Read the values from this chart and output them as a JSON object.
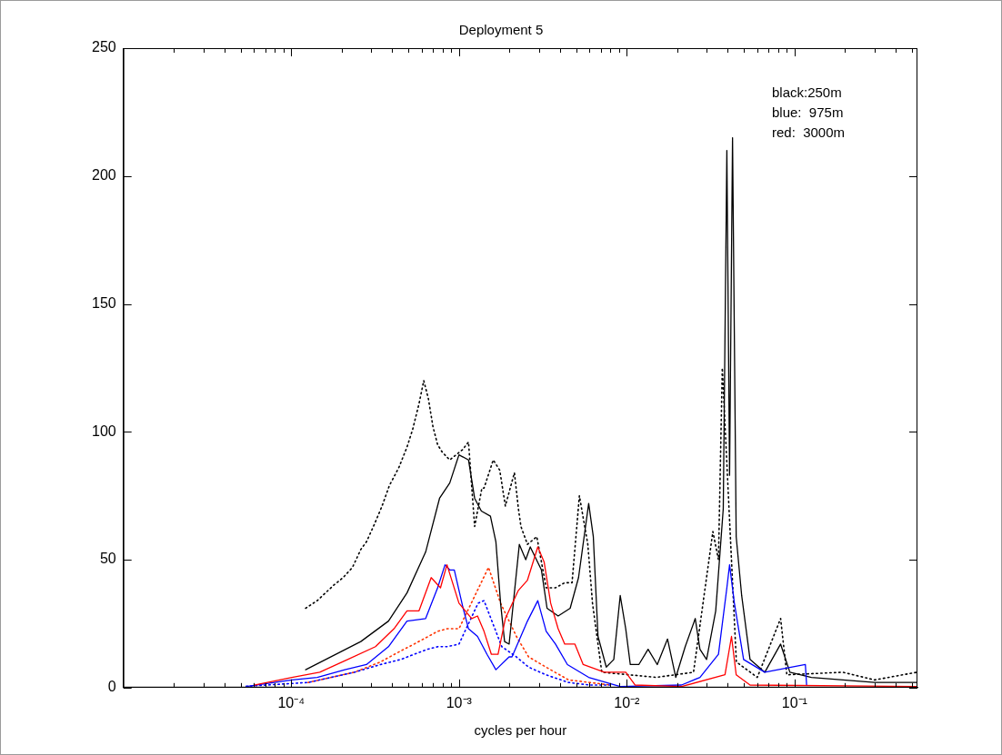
{
  "chart_data": {
    "type": "line",
    "title": "Deployment 5",
    "xlabel": "cycles per hour",
    "log": "x",
    "legend": false,
    "marker": "none",
    "xlim": [
      1e-05,
      0.54
    ],
    "ylim": [
      0,
      250
    ],
    "xticks": [
      {
        "value": 2e-05,
        "label": null
      },
      {
        "value": 3e-05,
        "label": null
      },
      {
        "value": 4e-05,
        "label": null
      },
      {
        "value": 5e-05,
        "label": null
      },
      {
        "value": 6e-05,
        "label": null
      },
      {
        "value": 7e-05,
        "label": null
      },
      {
        "value": 8e-05,
        "label": null
      },
      {
        "value": 9e-05,
        "label": null
      },
      {
        "value": 0.0001,
        "label": "10⁻⁴"
      },
      {
        "value": 0.0002,
        "label": null
      },
      {
        "value": 0.0003,
        "label": null
      },
      {
        "value": 0.0004,
        "label": null
      },
      {
        "value": 0.0005,
        "label": null
      },
      {
        "value": 0.0006,
        "label": null
      },
      {
        "value": 0.0007,
        "label": null
      },
      {
        "value": 0.0008,
        "label": null
      },
      {
        "value": 0.0009,
        "label": null
      },
      {
        "value": 0.001,
        "label": "10⁻³"
      },
      {
        "value": 0.002,
        "label": null
      },
      {
        "value": 0.003,
        "label": null
      },
      {
        "value": 0.004,
        "label": null
      },
      {
        "value": 0.005,
        "label": null
      },
      {
        "value": 0.006,
        "label": null
      },
      {
        "value": 0.007,
        "label": null
      },
      {
        "value": 0.008,
        "label": null
      },
      {
        "value": 0.009,
        "label": null
      },
      {
        "value": 0.01,
        "label": "10⁻²"
      },
      {
        "value": 0.02,
        "label": null
      },
      {
        "value": 0.03,
        "label": null
      },
      {
        "value": 0.04,
        "label": null
      },
      {
        "value": 0.05,
        "label": null
      },
      {
        "value": 0.06,
        "label": null
      },
      {
        "value": 0.07,
        "label": null
      },
      {
        "value": 0.08,
        "label": null
      },
      {
        "value": 0.09,
        "label": null
      },
      {
        "value": 0.1,
        "label": "10⁻¹"
      },
      {
        "value": 0.2,
        "label": null
      },
      {
        "value": 0.3,
        "label": null
      },
      {
        "value": 0.4,
        "label": null
      },
      {
        "value": 0.5,
        "label": null
      }
    ],
    "yticks": [
      0,
      50,
      100,
      150,
      200,
      250
    ],
    "annotations": [
      "black:250m",
      "blue:  975m",
      "red:  3000m"
    ],
    "series": [
      {
        "color": "#000000",
        "line_style": "dotted",
        "x": [
          0.000122,
          0.000143,
          0.000179,
          0.000204,
          0.000232,
          0.00026,
          0.000281,
          0.000314,
          0.000348,
          0.000385,
          0.000438,
          0.00049,
          0.00053,
          0.000578,
          0.000617,
          0.000657,
          0.0007,
          0.000746,
          0.000796,
          0.000881,
          0.00105,
          0.00114,
          0.00119,
          0.00124,
          0.00137,
          0.00141,
          0.0016,
          0.00175,
          0.00189,
          0.00214,
          0.00226,
          0.00234,
          0.00256,
          0.00291,
          0.00331,
          0.00376,
          0.00427,
          0.00472,
          0.00522,
          0.00586,
          0.00625,
          0.0071,
          0.015,
          0.025,
          0.0326,
          0.0352,
          0.0371,
          0.045,
          0.06,
          0.0826,
          0.09,
          0.194,
          0.3,
          0.536
        ],
        "values": [
          31,
          34,
          40,
          43,
          47,
          54,
          57,
          64,
          71,
          79,
          86,
          94,
          101,
          111,
          120,
          113,
          102,
          95,
          92,
          89,
          93,
          96,
          79,
          63,
          78,
          78,
          89,
          85,
          71,
          84,
          70,
          63,
          56,
          59,
          39,
          39,
          41,
          41,
          75,
          56,
          33,
          6,
          4,
          6,
          61,
          50,
          125,
          10,
          4,
          27,
          5,
          6,
          3,
          6
        ]
      },
      {
        "color": "#ff3300",
        "line_style": "dotted",
        "x": [
          0.000126,
          0.000238,
          0.00034,
          0.00044,
          0.00054,
          0.000657,
          0.000746,
          0.00085,
          0.001,
          0.0015,
          0.00177,
          0.0022,
          0.0026,
          0.0033,
          0.0045,
          0.006,
          0.008
        ],
        "values": [
          2,
          6,
          10,
          14,
          17,
          20,
          22,
          23,
          23,
          47,
          33,
          20,
          12,
          8,
          3,
          2,
          1
        ]
      },
      {
        "color": "#0000ff",
        "line_style": "dotted",
        "x": [
          5.4e-05,
          0.000126,
          0.000238,
          0.00034,
          0.00045,
          0.00054,
          0.00065,
          0.00075,
          0.00085,
          0.001,
          0.0013,
          0.00141,
          0.0018,
          0.0022,
          0.0026,
          0.0033,
          0.0045,
          0.006,
          0.008
        ],
        "values": [
          0.5,
          2,
          6,
          9,
          11,
          13,
          15,
          16,
          16,
          17,
          33,
          34,
          16,
          12,
          8,
          5,
          2,
          1,
          1
        ]
      },
      {
        "color": "#000000",
        "line_style": "solid",
        "x": [
          0.000122,
          0.00026,
          0.00038,
          0.00049,
          0.000633,
          0.000766,
          0.000881,
          0.001,
          0.00114,
          0.00124,
          0.00136,
          0.00154,
          0.00166,
          0.00177,
          0.00187,
          0.00199,
          0.00229,
          0.0025,
          0.00266,
          0.0031,
          0.00335,
          0.0039,
          0.0046,
          0.00516,
          0.00593,
          0.00632,
          0.00674,
          0.00755,
          0.00837,
          0.00914,
          0.00986,
          0.0105,
          0.0118,
          0.0134,
          0.0152,
          0.0175,
          0.0196,
          0.0223,
          0.0256,
          0.0273,
          0.0299,
          0.0339,
          0.0376,
          0.0395,
          0.041,
          0.0427,
          0.0449,
          0.0484,
          0.0543,
          0.0665,
          0.0826,
          0.0938,
          0.126,
          0.3,
          0.536
        ],
        "values": [
          7,
          18,
          26,
          37,
          53,
          74,
          80,
          91,
          89,
          74,
          69,
          67,
          57,
          33,
          18,
          17,
          56,
          50,
          55,
          46,
          31,
          28,
          31,
          43,
          72,
          59,
          20,
          8,
          11,
          36,
          23,
          9,
          9,
          15,
          9,
          19,
          4,
          16,
          27,
          15,
          11,
          30,
          70,
          210,
          83,
          215,
          59,
          36,
          11,
          6,
          17,
          6,
          4,
          2,
          2
        ]
      },
      {
        "color": "#0000ff",
        "line_style": "solid",
        "x": [
          5.4e-05,
          0.000101,
          0.000143,
          0.000209,
          0.000281,
          0.00038,
          0.00049,
          0.000633,
          0.000746,
          0.000826,
          0.000881,
          0.000938,
          0.00105,
          0.00114,
          0.00129,
          0.00147,
          0.00166,
          0.00199,
          0.00207,
          0.00256,
          0.00295,
          0.00331,
          0.00376,
          0.00443,
          0.00593,
          0.00914,
          0.0212,
          0.0273,
          0.0352,
          0.0395,
          0.041,
          0.0438,
          0.0497,
          0.0665,
          0.116,
          0.118
        ],
        "values": [
          0.4,
          3,
          4,
          7,
          9,
          16,
          26,
          27,
          39,
          48,
          46,
          46,
          32,
          23,
          20,
          13,
          7,
          12,
          12,
          26,
          34,
          22,
          17,
          9,
          4,
          0.4,
          1,
          4,
          13,
          39,
          48,
          33,
          11,
          6,
          9,
          1
        ]
      },
      {
        "color": "#ff0000",
        "line_style": "solid",
        "x": [
          6.1e-05,
          0.000101,
          0.000148,
          0.000217,
          0.000318,
          0.00041,
          0.00049,
          0.000578,
          0.000683,
          0.000776,
          0.000848,
          0.001,
          0.00119,
          0.00129,
          0.00141,
          0.00156,
          0.00171,
          0.00189,
          0.00226,
          0.00256,
          0.00295,
          0.00322,
          0.00352,
          0.0039,
          0.00427,
          0.00491,
          0.0055,
          0.00736,
          0.00986,
          0.0112,
          0.0212,
          0.0385,
          0.0421,
          0.0449,
          0.0543,
          0.536
        ],
        "values": [
          1,
          4,
          6,
          11,
          16,
          23,
          30,
          30,
          43,
          39,
          48,
          33,
          27,
          28,
          22,
          13,
          13,
          27,
          38,
          42,
          55,
          49,
          33,
          23,
          17,
          17,
          9,
          6,
          6,
          1,
          0.4,
          5,
          20,
          5,
          1,
          0.4
        ]
      }
    ]
  }
}
